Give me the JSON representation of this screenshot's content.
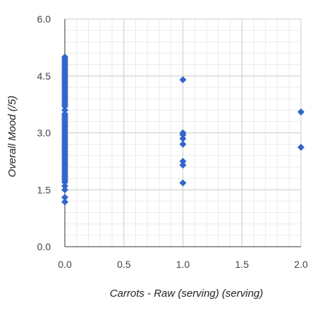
{
  "chart_data": {
    "type": "scatter",
    "title": "",
    "xlabel": "Carrots - Raw (serving) (serving)",
    "ylabel": "Overall Mood (/5)",
    "xlim": [
      0,
      2
    ],
    "ylim": [
      0,
      6
    ],
    "x_ticks": [
      0,
      0.5,
      1,
      1.5,
      2
    ],
    "x_tick_labels": [
      "0.0",
      "0.5",
      "1.0",
      "1.5",
      "2.0"
    ],
    "y_ticks": [
      0,
      1.5,
      3,
      4.5,
      6
    ],
    "y_tick_labels": [
      "0.0",
      "1.5",
      "3.0",
      "4.5",
      "6.0"
    ],
    "grid": true,
    "minor_grid": true,
    "legend": "none",
    "marker": "diamond",
    "series": [
      {
        "color": "#3366cc",
        "points": [
          [
            0,
            5.0
          ],
          [
            0,
            4.95
          ],
          [
            0,
            4.9
          ],
          [
            0,
            4.85
          ],
          [
            0,
            4.8
          ],
          [
            0,
            4.75
          ],
          [
            0,
            4.7
          ],
          [
            0,
            4.65
          ],
          [
            0,
            4.6
          ],
          [
            0,
            4.55
          ],
          [
            0,
            4.5
          ],
          [
            0,
            4.45
          ],
          [
            0,
            4.4
          ],
          [
            0,
            4.35
          ],
          [
            0,
            4.3
          ],
          [
            0,
            4.25
          ],
          [
            0,
            4.2
          ],
          [
            0,
            4.15
          ],
          [
            0,
            4.1
          ],
          [
            0,
            4.05
          ],
          [
            0,
            4.0
          ],
          [
            0,
            3.95
          ],
          [
            0,
            3.9
          ],
          [
            0,
            3.85
          ],
          [
            0,
            3.8
          ],
          [
            0,
            3.75
          ],
          [
            0,
            3.7
          ],
          [
            0,
            3.6
          ],
          [
            0,
            3.5
          ],
          [
            0,
            3.45
          ],
          [
            0,
            3.4
          ],
          [
            0,
            3.35
          ],
          [
            0,
            3.3
          ],
          [
            0,
            3.25
          ],
          [
            0,
            3.2
          ],
          [
            0,
            3.15
          ],
          [
            0,
            3.1
          ],
          [
            0,
            3.05
          ],
          [
            0,
            3.0
          ],
          [
            0,
            2.95
          ],
          [
            0,
            2.9
          ],
          [
            0,
            2.85
          ],
          [
            0,
            2.8
          ],
          [
            0,
            2.75
          ],
          [
            0,
            2.7
          ],
          [
            0,
            2.65
          ],
          [
            0,
            2.6
          ],
          [
            0,
            2.55
          ],
          [
            0,
            2.5
          ],
          [
            0,
            2.45
          ],
          [
            0,
            2.4
          ],
          [
            0,
            2.35
          ],
          [
            0,
            2.3
          ],
          [
            0,
            2.25
          ],
          [
            0,
            2.2
          ],
          [
            0,
            2.15
          ],
          [
            0,
            2.1
          ],
          [
            0,
            2.05
          ],
          [
            0,
            2.0
          ],
          [
            0,
            1.95
          ],
          [
            0,
            1.9
          ],
          [
            0,
            1.85
          ],
          [
            0,
            1.8
          ],
          [
            0,
            1.75
          ],
          [
            0,
            1.7
          ],
          [
            0,
            1.6
          ],
          [
            0,
            1.5
          ],
          [
            0,
            1.3
          ],
          [
            0,
            1.18
          ],
          [
            1,
            4.4
          ],
          [
            1,
            3.0
          ],
          [
            1,
            2.95
          ],
          [
            1,
            2.85
          ],
          [
            1,
            2.7
          ],
          [
            1,
            2.25
          ],
          [
            1,
            2.15
          ],
          [
            1,
            1.68
          ],
          [
            2,
            3.55
          ],
          [
            2,
            2.62
          ]
        ]
      }
    ]
  }
}
